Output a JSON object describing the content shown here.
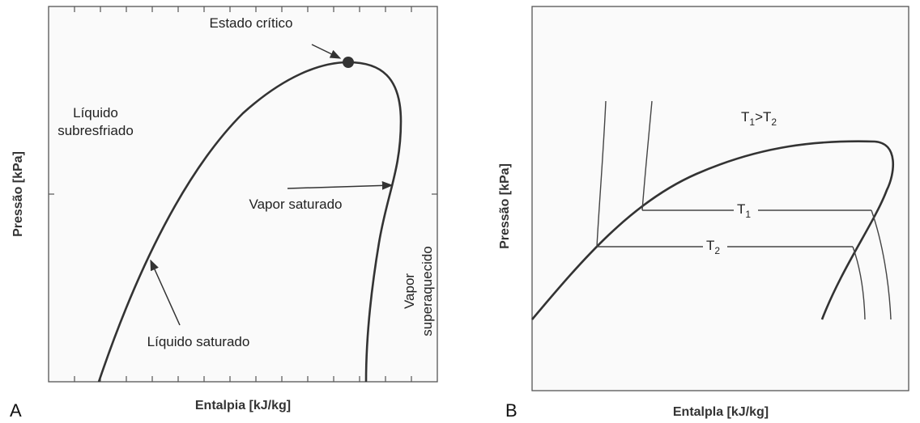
{
  "panel_a": {
    "label": "A",
    "critical_state": "Estado crítico",
    "subcooled_liquid": [
      "Líquido",
      "subresfriado"
    ],
    "saturated_vapor": "Vapor saturado",
    "saturated_liquid": "Líquido saturado",
    "superheated_vapor": [
      "Vapor",
      "superaquecido"
    ],
    "y_axis": "Pressão [kPa]",
    "x_axis": "Entalpia [kJ/kg]"
  },
  "panel_b": {
    "label": "B",
    "temperature_relation": [
      "T",
      "1",
      ">T",
      "2"
    ],
    "isotherm_1": [
      "T",
      "1"
    ],
    "isotherm_2": [
      "T",
      "2"
    ],
    "y_axis": "Pressão [kPa]",
    "x_axis": "Entalpla [kJ/kg]"
  }
}
